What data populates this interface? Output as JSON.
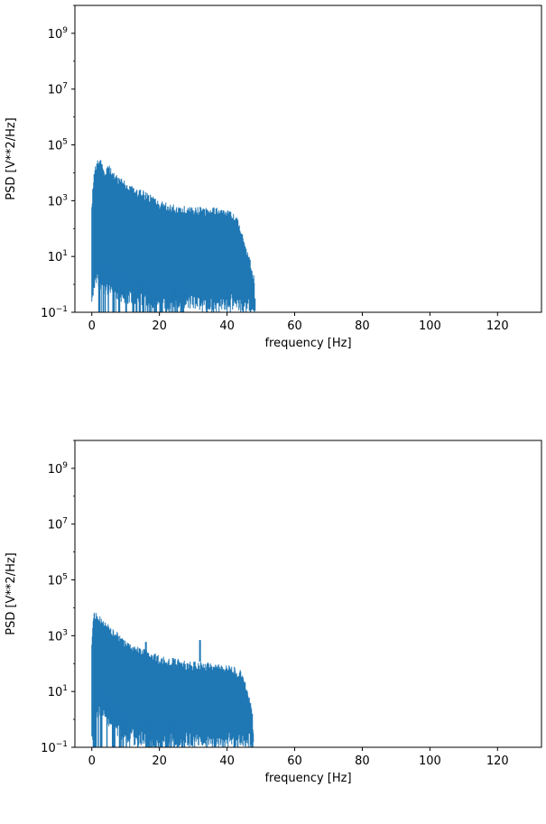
{
  "chart_data": [
    {
      "type": "line",
      "title": "",
      "xlabel": "frequency [Hz]",
      "ylabel": "PSD [V**2/Hz]",
      "yscale": "log",
      "xlim": [
        -5,
        133
      ],
      "ylim": [
        0.1,
        10000000000.0
      ],
      "xticks": [
        0,
        20,
        40,
        60,
        80,
        100,
        120
      ],
      "xtick_labels": [
        "0",
        "20",
        "40",
        "60",
        "80",
        "100",
        "120"
      ],
      "yticks": [
        0.1,
        10,
        1000,
        100000,
        10000000,
        1000000000
      ],
      "ytick_labels": [
        {
          "base": "10",
          "exp": "−1"
        },
        {
          "base": "10",
          "exp": "1"
        },
        {
          "base": "10",
          "exp": "3"
        },
        {
          "base": "10",
          "exp": "5"
        },
        {
          "base": "10",
          "exp": "7"
        },
        {
          "base": "10",
          "exp": "9"
        }
      ],
      "grid": false,
      "series": [
        {
          "color": "#1f77b4",
          "envelope_x": [
            0,
            0.5,
            1,
            2,
            3,
            4,
            5,
            6,
            8,
            10,
            12,
            15,
            18,
            20,
            25,
            30,
            35,
            38,
            40,
            42,
            43,
            44,
            45,
            46,
            47,
            48,
            48.5
          ],
          "envelope_y": [
            1000,
            8000,
            20000,
            40000,
            25000,
            15000,
            20000,
            12000,
            8000,
            5000,
            3500,
            2500,
            1500,
            1000,
            700,
            600,
            600,
            550,
            500,
            350,
            250,
            120,
            50,
            20,
            8,
            2,
            0.1
          ],
          "floor_x": [
            0,
            1,
            3,
            6,
            10,
            15,
            20,
            25,
            30,
            35,
            40,
            44,
            46,
            48
          ],
          "floor_y": [
            0.1,
            1.0,
            0.5,
            0.3,
            0.2,
            0.15,
            0.12,
            0.12,
            0.12,
            0.12,
            0.12,
            0.11,
            0.1,
            0.1
          ],
          "spikes": []
        }
      ]
    },
    {
      "type": "line",
      "title": "",
      "xlabel": "frequency [Hz]",
      "ylabel": "PSD [V**2/Hz]",
      "yscale": "log",
      "xlim": [
        -5,
        133
      ],
      "ylim": [
        0.1,
        10000000000.0
      ],
      "xticks": [
        0,
        20,
        40,
        60,
        80,
        100,
        120
      ],
      "xtick_labels": [
        "0",
        "20",
        "40",
        "60",
        "80",
        "100",
        "120"
      ],
      "yticks": [
        0.1,
        10,
        1000,
        100000,
        10000000,
        1000000000
      ],
      "ytick_labels": [
        {
          "base": "10",
          "exp": "−1"
        },
        {
          "base": "10",
          "exp": "1"
        },
        {
          "base": "10",
          "exp": "3"
        },
        {
          "base": "10",
          "exp": "5"
        },
        {
          "base": "10",
          "exp": "7"
        },
        {
          "base": "10",
          "exp": "9"
        }
      ],
      "grid": false,
      "series": [
        {
          "color": "#1f77b4",
          "envelope_x": [
            0,
            0.5,
            1,
            2,
            3,
            5,
            8,
            10,
            12,
            15,
            18,
            20,
            25,
            30,
            35,
            40,
            42,
            44,
            45,
            46,
            47,
            47.5,
            48
          ],
          "envelope_y": [
            1000,
            7000,
            8000,
            6000,
            4000,
            2500,
            1200,
            700,
            500,
            350,
            250,
            200,
            150,
            120,
            110,
            90,
            80,
            60,
            30,
            15,
            5,
            2,
            0.1
          ],
          "floor_x": [
            0,
            2,
            5,
            8,
            12,
            20,
            30,
            40,
            46,
            48
          ],
          "floor_y": [
            0.1,
            1.5,
            0.5,
            0.2,
            0.12,
            0.1,
            0.1,
            0.1,
            0.1,
            0.1
          ],
          "spikes": [
            {
              "x": 16,
              "y": 600
            },
            {
              "x": 32,
              "y": 700
            }
          ]
        }
      ]
    }
  ]
}
